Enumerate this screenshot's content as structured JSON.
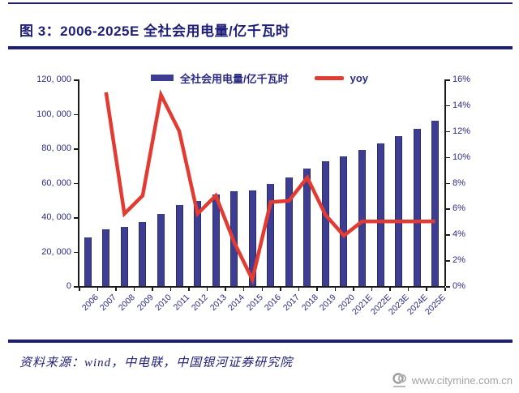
{
  "page": {
    "title": "图 3：2006-2025E 全社会用电量/亿千瓦时",
    "source_note": "资料来源：wind，中电联，中国银河证券研究院",
    "watermark_url": "www.citymine.com.cn"
  },
  "colors": {
    "navy_rule": "#1e1e78",
    "bar_fill": "#3d3d92",
    "bar_border": "#2b2b6e",
    "line_red": "#e23b32",
    "axis_black": "#1a1a1a",
    "label_navy": "#2a2a85",
    "watermark_gray": "#a3a3a3"
  },
  "chart_data": {
    "type": "bar",
    "title": "图 3：2006-2025E 全社会用电量/亿千瓦时",
    "categories": [
      "2006",
      "2007",
      "2008",
      "2009",
      "2010",
      "2011",
      "2012",
      "2013",
      "2014",
      "2015",
      "2016",
      "2017",
      "2018",
      "2019",
      "2020",
      "2021E",
      "2022E",
      "2023E",
      "2024E",
      "2025E"
    ],
    "series": [
      {
        "name": "全社会用电量/亿千瓦时",
        "type": "bar",
        "axis": "left",
        "color": "#3d3d92",
        "values": [
          28248,
          32712,
          34541,
          37032,
          41923,
          47000,
          49591,
          53223,
          55233,
          55500,
          59198,
          63077,
          68449,
          72255,
          75110,
          78866,
          82809,
          86949,
          91297,
          95862
        ]
      },
      {
        "name": "yoy",
        "type": "line",
        "axis": "right",
        "color": "#e23b32",
        "values": [
          null,
          15.0,
          5.6,
          7.0,
          14.8,
          12.0,
          5.6,
          7.0,
          3.4,
          0.5,
          6.5,
          6.6,
          8.4,
          5.5,
          3.9,
          5.0,
          5.0,
          5.0,
          5.0,
          5.0
        ]
      }
    ],
    "left_axis": {
      "min": 0,
      "max": 120000,
      "tick_step": 20000,
      "tick_labels": [
        "0",
        "20, 000",
        "40, 000",
        "60, 000",
        "80, 000",
        "100, 000",
        "120, 000"
      ]
    },
    "right_axis": {
      "min": 0,
      "max": 16,
      "tick_step": 2,
      "tick_labels": [
        "0%",
        "2%",
        "4%",
        "6%",
        "8%",
        "10%",
        "12%",
        "14%",
        "16%"
      ]
    },
    "legend_position": "top",
    "grid": false
  }
}
